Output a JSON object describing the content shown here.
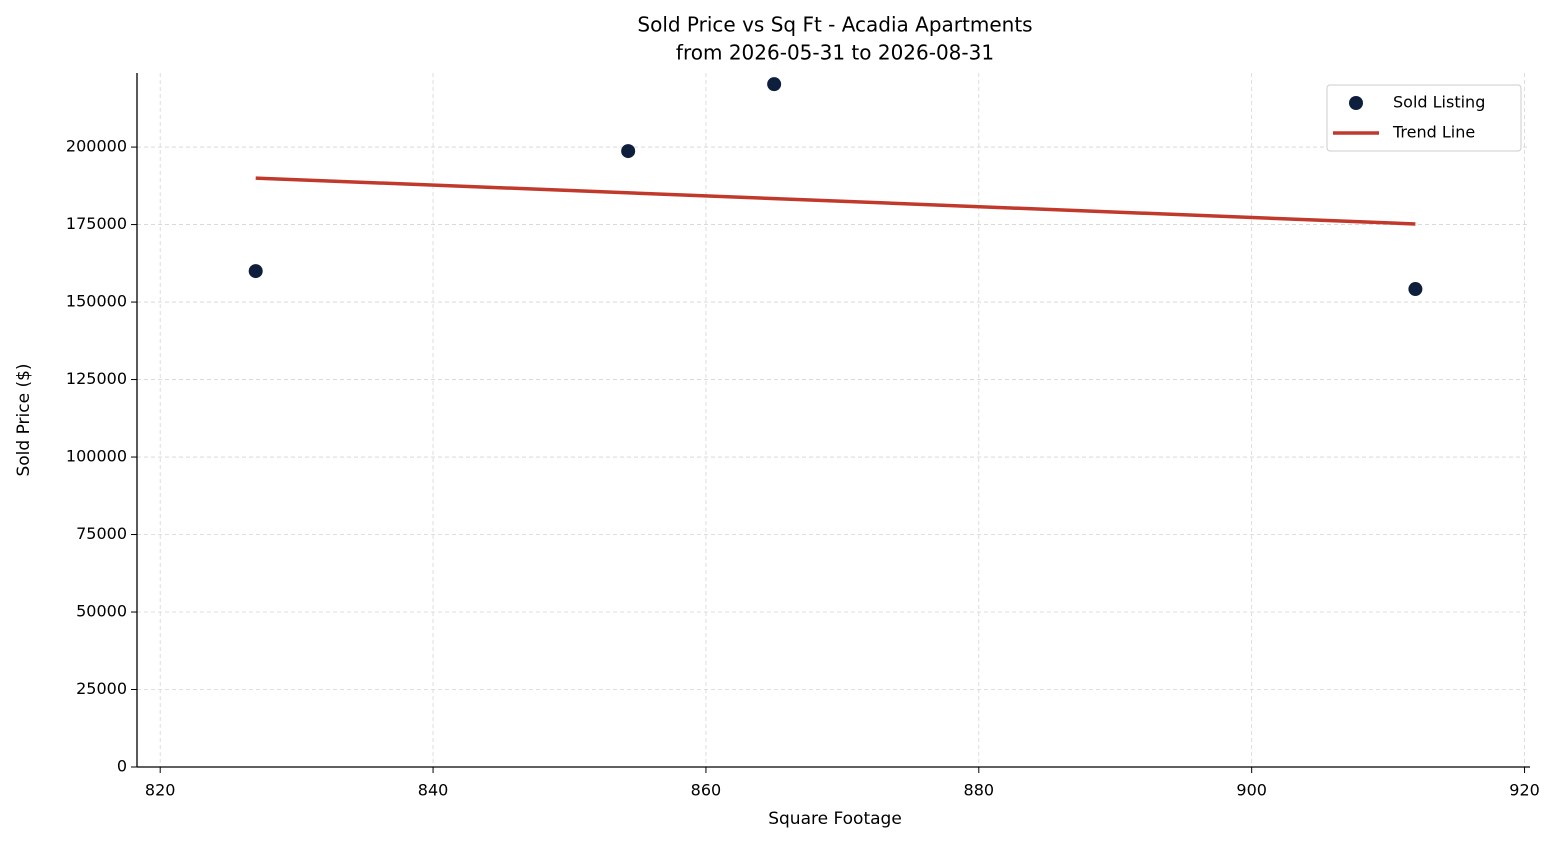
{
  "chart_data": {
    "type": "scatter",
    "title": "Sold Price vs Sq Ft - Acadia Apartments",
    "subtitle": "from 2026-05-31 to 2026-08-31",
    "x_label": "Square Footage",
    "y_label": "Sold Price ($)",
    "xlim": [
      818.3,
      920.4
    ],
    "ylim": [
      0,
      223900
    ],
    "xticks": [
      820,
      840,
      860,
      880,
      900,
      920
    ],
    "yticks": [
      0,
      25000,
      50000,
      75000,
      100000,
      125000,
      150000,
      175000,
      200000
    ],
    "grid": true,
    "legend": "upper right",
    "series": [
      {
        "name": "Sold Listing",
        "type": "scatter",
        "color": "#0d1f3c",
        "x": [
          827,
          854.3,
          865,
          912
        ],
        "values": [
          160000,
          198700,
          220300,
          154200
        ]
      },
      {
        "name": "Trend Line",
        "type": "line",
        "color": "#c0392b",
        "x": [
          827,
          912
        ],
        "values": [
          190000,
          175200
        ]
      }
    ]
  }
}
